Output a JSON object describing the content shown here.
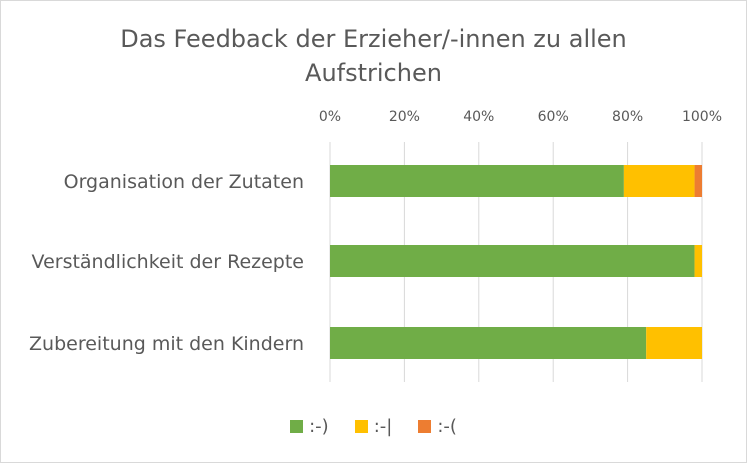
{
  "chart_data": {
    "type": "bar",
    "orientation": "horizontal",
    "stacked": "percent",
    "title_lines": [
      "Das Feedback der Erzieher/-innen zu allen",
      "Aufstrichen"
    ],
    "categories": [
      "Organisation der Zutaten",
      "Verständlichkeit der Rezepte",
      "Zubereitung mit den Kindern"
    ],
    "series": [
      {
        "name": ":-)",
        "color": "#70ad47",
        "values": [
          79,
          98,
          85
        ]
      },
      {
        "name": ":-|",
        "color": "#ffc000",
        "values": [
          19,
          2,
          15
        ]
      },
      {
        "name": ":-(",
        "color": "#ed7d31",
        "values": [
          2,
          0,
          0
        ]
      }
    ],
    "x_ticks": [
      "0%",
      "20%",
      "40%",
      "60%",
      "80%",
      "100%"
    ],
    "xlim": [
      0,
      100
    ],
    "gridlines": true,
    "legend_position": "bottom"
  }
}
